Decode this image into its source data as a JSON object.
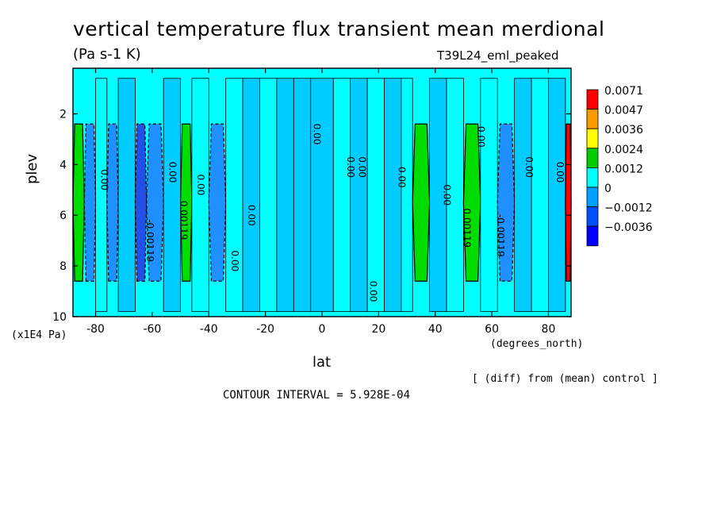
{
  "title": "vertical temperature flux transient mean merdional",
  "units": "(Pa s-1 K)",
  "run_name": "T39L24_eml_peaked",
  "footer_note": "[ (diff) from (mean) control ]",
  "contour_interval": "CONTOUR INTERVAL = 5.928E-04",
  "chart_data": {
    "type": "heatmap",
    "title": "vertical temperature flux transient mean merdional",
    "xlabel": "lat",
    "xunit": "(degrees_north)",
    "ylabel": "plev",
    "yunit": "(x1E4 Pa)",
    "xlim": [
      -88,
      88
    ],
    "ylim": [
      10,
      0.2
    ],
    "x_ticks": [
      "-80",
      "-60",
      "-40",
      "-20",
      "0",
      "20",
      "40",
      "60",
      "80"
    ],
    "x_tick_values": [
      -80,
      -60,
      -40,
      -20,
      0,
      20,
      40,
      60,
      80
    ],
    "y_ticks": [
      "2",
      "4",
      "6",
      "8",
      "10"
    ],
    "y_tick_values": [
      2,
      4,
      6,
      8,
      10
    ],
    "colorbar": {
      "labels": [
        "0.0071",
        "0.0047",
        "0.0036",
        "0.0024",
        "0.0012",
        "0",
        "−0.0012",
        "−0.0036"
      ],
      "colors": [
        "#ff0000",
        "#ff9900",
        "#ffff00",
        "#00cc00",
        "#00ffff",
        "#00a0ff",
        "#0050ff",
        "#0000ff"
      ]
    },
    "fill_colors": {
      "lt_-0.0036": "#2250e6",
      "-0.0036_-0.0012": "#1e90ff",
      "-0.0012_0": "#00ccff",
      "0_0.0012": "#00ffff",
      "0.0012_0.0024": "#00dd00",
      "0.0024_0.0036": "#ffff00",
      "0.0036_0.0047": "#ffaa00",
      "gt_0.0071": "#ff0000"
    },
    "band_field": [
      {
        "lat": -88,
        "value": 0.0018
      },
      {
        "lat": -84,
        "value": -0.0015
      },
      {
        "lat": -80,
        "value": 0.0002
      },
      {
        "lat": -76,
        "value": -0.0018
      },
      {
        "lat": -72,
        "value": -0.0006
      },
      {
        "lat": -66,
        "value": -0.0038
      },
      {
        "lat": -62,
        "value": -0.0032
      },
      {
        "lat": -56,
        "value": -0.0008
      },
      {
        "lat": -50,
        "value": 0.0013
      },
      {
        "lat": -46,
        "value": 0.0004
      },
      {
        "lat": -40,
        "value": -0.0016
      },
      {
        "lat": -34,
        "value": 0.0003
      },
      {
        "lat": -28,
        "value": -0.0007
      },
      {
        "lat": -22,
        "value": 0.0002
      },
      {
        "lat": -16,
        "value": -0.001
      },
      {
        "lat": -10,
        "value": -0.0004
      },
      {
        "lat": -4,
        "value": -0.0012
      },
      {
        "lat": 4,
        "value": 0.0001
      },
      {
        "lat": 10,
        "value": -0.0009
      },
      {
        "lat": 16,
        "value": 0.0003
      },
      {
        "lat": 22,
        "value": -0.0011
      },
      {
        "lat": 28,
        "value": 0.0006
      },
      {
        "lat": 32,
        "value": 0.0016
      },
      {
        "lat": 38,
        "value": -0.0006
      },
      {
        "lat": 44,
        "value": 0.0002
      },
      {
        "lat": 50,
        "value": 0.0014
      },
      {
        "lat": 56,
        "value": 0.0001
      },
      {
        "lat": 62,
        "value": -0.0034
      },
      {
        "lat": 68,
        "value": -0.001
      },
      {
        "lat": 74,
        "value": 0.0001
      },
      {
        "lat": 80,
        "value": -0.0009
      },
      {
        "lat": 86,
        "value": 0.006
      }
    ],
    "contour_labels": [
      {
        "text": "0.00",
        "lat": -78,
        "plev": 4.6
      },
      {
        "text": "-0.00119",
        "lat": -62,
        "plev": 7.0
      },
      {
        "text": "0.00",
        "lat": -54,
        "plev": 4.3
      },
      {
        "text": "0.00119",
        "lat": -50,
        "plev": 6.2
      },
      {
        "text": "0.00",
        "lat": -44,
        "plev": 4.8
      },
      {
        "text": "0.00",
        "lat": -26,
        "plev": 6.0
      },
      {
        "text": "0.00",
        "lat": -32,
        "plev": 7.8
      },
      {
        "text": "0.00",
        "lat": -3,
        "plev": 2.8
      },
      {
        "text": "0.00",
        "lat": 9,
        "plev": 4.1
      },
      {
        "text": "0.00",
        "lat": 13,
        "plev": 4.1
      },
      {
        "text": "0.00",
        "lat": 17,
        "plev": 9.0
      },
      {
        "text": "0.00",
        "lat": 27,
        "plev": 4.5
      },
      {
        "text": "0.00",
        "lat": 43,
        "plev": 5.2
      },
      {
        "text": "0.00",
        "lat": 55,
        "plev": 2.9
      },
      {
        "text": "0.00119",
        "lat": 50,
        "plev": 6.5
      },
      {
        "text": "-0.00119",
        "lat": 62,
        "plev": 6.8
      },
      {
        "text": "0.00",
        "lat": 72,
        "plev": 4.1
      },
      {
        "text": "0.00",
        "lat": 83,
        "plev": 4.3
      }
    ]
  }
}
